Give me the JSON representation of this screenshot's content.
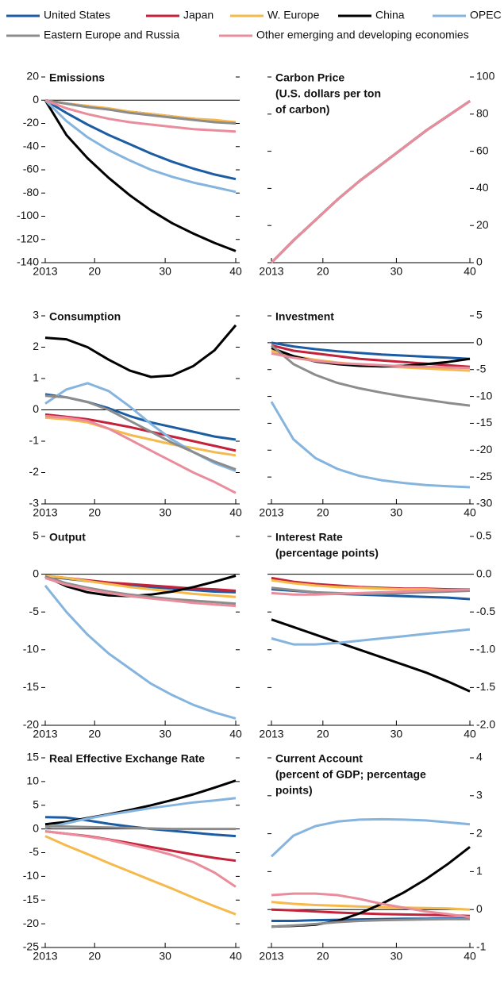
{
  "legend": [
    {
      "name": "United States",
      "color": "#1b5ca3"
    },
    {
      "name": "Japan",
      "color": "#c4213b"
    },
    {
      "name": "W. Europe",
      "color": "#f5b94c"
    },
    {
      "name": "China",
      "color": "#000000"
    },
    {
      "name": "OPEC",
      "color": "#85b4de"
    },
    {
      "name": "Eastern Europe and Russia",
      "color": "#8c8c8c"
    },
    {
      "name": "Other emerging and developing economies",
      "color": "#e98c9c"
    }
  ],
  "chart_data": [
    {
      "type": "line",
      "title": "Emissions",
      "x": [
        2013,
        2016,
        2019,
        2022,
        2025,
        2028,
        2031,
        2034,
        2037,
        2040
      ],
      "xlim": [
        2013,
        2040
      ],
      "xticks": [
        2013,
        {
          "value": 2020,
          "label": "20"
        },
        {
          "value": 2030,
          "label": "30"
        },
        {
          "value": 2040,
          "label": "40"
        }
      ],
      "ylim": [
        -140,
        20
      ],
      "yticks": [
        -140,
        -120,
        -100,
        -80,
        -60,
        -40,
        -20,
        0,
        20
      ],
      "series": [
        {
          "values": [
            0,
            -11,
            -21,
            -30,
            -38,
            -46,
            -53,
            -59,
            -64,
            -68
          ]
        },
        {
          "values": [
            0,
            -3,
            -5,
            -8,
            -10,
            -12,
            -14,
            -16,
            -18,
            -20
          ]
        },
        {
          "values": [
            0,
            -3,
            -5,
            -7,
            -10,
            -12,
            -14,
            -16,
            -17,
            -19
          ]
        },
        {
          "values": [
            0,
            -30,
            -50,
            -67,
            -82,
            -95,
            -106,
            -115,
            -123,
            -130
          ]
        },
        {
          "values": [
            0,
            -18,
            -32,
            -43,
            -52,
            -60,
            -66,
            -71,
            -75,
            -79
          ]
        },
        {
          "values": [
            0,
            -3,
            -6,
            -8,
            -11,
            -13,
            -15,
            -17,
            -19,
            -20
          ]
        },
        {
          "values": [
            0,
            -7,
            -12,
            -16,
            -19,
            -21,
            -23,
            -25,
            -26,
            -27
          ]
        }
      ]
    },
    {
      "type": "line",
      "title": "Carbon Price",
      "subtitle": [
        "(U.S. dollars per ton",
        "of carbon)"
      ],
      "x": [
        2013,
        2016,
        2019,
        2022,
        2025,
        2028,
        2031,
        2034,
        2037,
        2040
      ],
      "xlim": [
        2013,
        2040
      ],
      "xticks": [
        2013,
        {
          "value": 2020,
          "label": "20"
        },
        {
          "value": 2030,
          "label": "30"
        },
        {
          "value": 2040,
          "label": "40"
        }
      ],
      "ylim": [
        0,
        100
      ],
      "yticks": [
        0,
        20,
        40,
        60,
        80,
        100
      ],
      "series": [
        {
          "values": [
            0,
            12,
            23,
            34,
            44,
            53,
            62,
            71,
            79,
            87
          ]
        },
        {
          "values": [
            0,
            12,
            23,
            34,
            44,
            53,
            62,
            71,
            79,
            87
          ]
        },
        {
          "values": [
            0,
            12,
            23,
            34,
            44,
            53,
            62,
            71,
            79,
            87
          ]
        },
        {
          "values": [
            0,
            12,
            23,
            34,
            44,
            53,
            62,
            71,
            79,
            87
          ]
        },
        {
          "values": [
            0,
            12,
            23,
            34,
            44,
            53,
            62,
            71,
            79,
            87
          ]
        },
        {
          "values": [
            0,
            12,
            23,
            34,
            44,
            53,
            62,
            71,
            79,
            87
          ]
        },
        {
          "values": [
            0,
            12,
            23,
            34,
            44,
            53,
            62,
            71,
            79,
            87
          ]
        }
      ]
    },
    {
      "type": "line",
      "title": "Consumption",
      "x": [
        2013,
        2016,
        2019,
        2022,
        2025,
        2028,
        2031,
        2034,
        2037,
        2040
      ],
      "xlim": [
        2013,
        2040
      ],
      "xticks": [
        2013,
        {
          "value": 2020,
          "label": "20"
        },
        {
          "value": 2030,
          "label": "30"
        },
        {
          "value": 2040,
          "label": "40"
        }
      ],
      "ylim": [
        -3,
        3
      ],
      "yticks": [
        -3,
        -2,
        -1,
        0,
        1,
        2,
        3
      ],
      "series": [
        {
          "values": [
            0.5,
            0.4,
            0.25,
            0.05,
            -0.2,
            -0.4,
            -0.55,
            -0.7,
            -0.85,
            -0.95
          ]
        },
        {
          "values": [
            -0.15,
            -0.22,
            -0.3,
            -0.42,
            -0.55,
            -0.7,
            -0.85,
            -1.0,
            -1.15,
            -1.3
          ]
        },
        {
          "values": [
            -0.25,
            -0.3,
            -0.4,
            -0.6,
            -0.8,
            -0.95,
            -1.1,
            -1.22,
            -1.35,
            -1.45
          ]
        },
        {
          "values": [
            2.3,
            2.25,
            2.0,
            1.6,
            1.25,
            1.05,
            1.1,
            1.4,
            1.9,
            2.7
          ]
        },
        {
          "values": [
            0.2,
            0.65,
            0.85,
            0.6,
            0.1,
            -0.45,
            -0.95,
            -1.35,
            -1.7,
            -1.95
          ]
        },
        {
          "values": [
            0.45,
            0.4,
            0.25,
            0.0,
            -0.35,
            -0.7,
            -1.05,
            -1.35,
            -1.65,
            -1.9
          ]
        },
        {
          "values": [
            -0.2,
            -0.25,
            -0.35,
            -0.6,
            -0.95,
            -1.3,
            -1.65,
            -2.0,
            -2.3,
            -2.65
          ]
        }
      ]
    },
    {
      "type": "line",
      "title": "Investment",
      "x": [
        2013,
        2016,
        2019,
        2022,
        2025,
        2028,
        2031,
        2034,
        2037,
        2040
      ],
      "xlim": [
        2013,
        2040
      ],
      "xticks": [
        2013,
        {
          "value": 2020,
          "label": "20"
        },
        {
          "value": 2030,
          "label": "30"
        },
        {
          "value": 2040,
          "label": "40"
        }
      ],
      "ylim": [
        -30,
        5
      ],
      "yticks": [
        -30,
        -25,
        -20,
        -15,
        -10,
        -5,
        0,
        5
      ],
      "series": [
        {
          "values": [
            0,
            -0.7,
            -1.2,
            -1.6,
            -1.9,
            -2.2,
            -2.4,
            -2.6,
            -2.8,
            -3
          ]
        },
        {
          "values": [
            -0.5,
            -1.5,
            -2,
            -2.5,
            -3,
            -3.3,
            -3.6,
            -3.9,
            -4.2,
            -4.5
          ]
        },
        {
          "values": [
            -1.5,
            -2.5,
            -3.2,
            -3.7,
            -4.1,
            -4.4,
            -4.6,
            -4.8,
            -5,
            -5.2
          ]
        },
        {
          "values": [
            -1,
            -2.5,
            -3.5,
            -4,
            -4.3,
            -4.4,
            -4.3,
            -4,
            -3.6,
            -3
          ]
        },
        {
          "values": [
            -11,
            -18,
            -21.5,
            -23.5,
            -24.8,
            -25.6,
            -26.1,
            -26.5,
            -26.7,
            -26.9
          ]
        },
        {
          "values": [
            -0.5,
            -4,
            -6,
            -7.5,
            -8.5,
            -9.3,
            -10,
            -10.6,
            -11.2,
            -11.7
          ]
        },
        {
          "values": [
            -2,
            -2.8,
            -3.4,
            -3.8,
            -4,
            -4.2,
            -4.4,
            -4.5,
            -4.6,
            -4.7
          ]
        }
      ]
    },
    {
      "type": "line",
      "title": "Output",
      "x": [
        2013,
        2016,
        2019,
        2022,
        2025,
        2028,
        2031,
        2034,
        2037,
        2040
      ],
      "xlim": [
        2013,
        2040
      ],
      "xticks": [
        2013,
        {
          "value": 2020,
          "label": "20"
        },
        {
          "value": 2030,
          "label": "30"
        },
        {
          "value": 2040,
          "label": "40"
        }
      ],
      "ylim": [
        -20,
        5
      ],
      "yticks": [
        -20,
        -15,
        -10,
        -5,
        0,
        5
      ],
      "series": [
        {
          "values": [
            -0.3,
            -0.6,
            -0.9,
            -1.2,
            -1.5,
            -1.7,
            -1.9,
            -2.1,
            -2.3,
            -2.4
          ]
        },
        {
          "values": [
            -0.2,
            -0.5,
            -0.8,
            -1.1,
            -1.3,
            -1.5,
            -1.7,
            -1.9,
            -2.0,
            -2.2
          ]
        },
        {
          "values": [
            -0.2,
            -0.5,
            -0.9,
            -1.3,
            -1.7,
            -2.0,
            -2.3,
            -2.6,
            -2.8,
            -3
          ]
        },
        {
          "values": [
            -0.3,
            -1.6,
            -2.4,
            -2.8,
            -2.9,
            -2.7,
            -2.3,
            -1.7,
            -1.0,
            -0.2
          ]
        },
        {
          "values": [
            -1.5,
            -5,
            -8,
            -10.5,
            -12.5,
            -14.5,
            -16,
            -17.3,
            -18.3,
            -19.1
          ]
        },
        {
          "values": [
            -0.3,
            -1.2,
            -1.8,
            -2.3,
            -2.7,
            -3.0,
            -3.3,
            -3.5,
            -3.7,
            -3.9
          ]
        },
        {
          "values": [
            -0.5,
            -1.4,
            -2,
            -2.5,
            -2.9,
            -3.2,
            -3.5,
            -3.8,
            -4.0,
            -4.2
          ]
        }
      ]
    },
    {
      "type": "line",
      "title": "Interest Rate",
      "subtitle": [
        "(percentage points)"
      ],
      "x": [
        2013,
        2016,
        2019,
        2022,
        2025,
        2028,
        2031,
        2034,
        2037,
        2040
      ],
      "xlim": [
        2013,
        2040
      ],
      "xticks": [
        2013,
        {
          "value": 2020,
          "label": "20"
        },
        {
          "value": 2030,
          "label": "30"
        },
        {
          "value": 2040,
          "label": "40"
        }
      ],
      "ylim": [
        -2,
        0.5
      ],
      "yticks": [
        {
          "value": -2,
          "label": "-2.0"
        },
        -1.5,
        {
          "value": -1,
          "label": "-1.0"
        },
        -0.5,
        {
          "value": 0,
          "label": "0.0"
        },
        0.5
      ],
      "series": [
        {
          "values": [
            -0.2,
            -0.22,
            -0.24,
            -0.26,
            -0.27,
            -0.28,
            -0.29,
            -0.3,
            -0.31,
            -0.33
          ]
        },
        {
          "values": [
            -0.05,
            -0.1,
            -0.13,
            -0.15,
            -0.17,
            -0.18,
            -0.19,
            -0.19,
            -0.2,
            -0.2
          ]
        },
        {
          "values": [
            -0.08,
            -0.12,
            -0.15,
            -0.17,
            -0.18,
            -0.19,
            -0.2,
            -0.2,
            -0.21,
            -0.21
          ]
        },
        {
          "values": [
            -0.6,
            -0.7,
            -0.8,
            -0.9,
            -1.0,
            -1.1,
            -1.2,
            -1.3,
            -1.42,
            -1.55
          ]
        },
        {
          "values": [
            -0.85,
            -0.93,
            -0.93,
            -0.91,
            -0.88,
            -0.85,
            -0.82,
            -0.79,
            -0.76,
            -0.73
          ]
        },
        {
          "values": [
            -0.18,
            -0.21,
            -0.24,
            -0.25,
            -0.26,
            -0.26,
            -0.25,
            -0.24,
            -0.23,
            -0.22
          ]
        },
        {
          "values": [
            -0.25,
            -0.27,
            -0.27,
            -0.26,
            -0.25,
            -0.24,
            -0.23,
            -0.22,
            -0.21,
            -0.2
          ]
        }
      ]
    },
    {
      "type": "line",
      "title": "Real Effective Exchange Rate",
      "x": [
        2013,
        2016,
        2019,
        2022,
        2025,
        2028,
        2031,
        2034,
        2037,
        2040
      ],
      "xlim": [
        2013,
        2040
      ],
      "xticks": [
        2013,
        {
          "value": 2020,
          "label": "20"
        },
        {
          "value": 2030,
          "label": "30"
        },
        {
          "value": 2040,
          "label": "40"
        }
      ],
      "ylim": [
        -25,
        15
      ],
      "yticks": [
        -25,
        -20,
        -15,
        -10,
        -5,
        0,
        5,
        10,
        15
      ],
      "series": [
        {
          "values": [
            2.5,
            2.4,
            1.8,
            1.1,
            0.5,
            0,
            -0.4,
            -0.8,
            -1.2,
            -1.5
          ]
        },
        {
          "values": [
            -0.5,
            -1,
            -1.5,
            -2.2,
            -3,
            -3.8,
            -4.6,
            -5.4,
            -6.1,
            -6.7
          ]
        },
        {
          "values": [
            -1.5,
            -3.5,
            -5.3,
            -7.2,
            -9,
            -10.8,
            -12.6,
            -14.5,
            -16.3,
            -18
          ]
        },
        {
          "values": [
            1,
            1.5,
            2.3,
            3.1,
            4,
            5,
            6.1,
            7.3,
            8.7,
            10.2
          ]
        },
        {
          "values": [
            0.2,
            1.2,
            2.2,
            3.0,
            3.7,
            4.4,
            5.0,
            5.6,
            6.0,
            6.5
          ]
        },
        {
          "values": [
            0.5,
            0.5,
            0.4,
            0.3,
            0.2,
            0.1,
            0.0,
            0,
            0,
            0
          ]
        },
        {
          "values": [
            -0.5,
            -1,
            -1.6,
            -2.3,
            -3.3,
            -4.3,
            -5.5,
            -7,
            -9.2,
            -12.2
          ]
        }
      ]
    },
    {
      "type": "line",
      "title": "Current Account",
      "subtitle": [
        "(percent of GDP; percentage",
        "points)"
      ],
      "x": [
        2013,
        2016,
        2019,
        2022,
        2025,
        2028,
        2031,
        2034,
        2037,
        2040
      ],
      "xlim": [
        2013,
        2040
      ],
      "xticks": [
        2013,
        {
          "value": 2020,
          "label": "20"
        },
        {
          "value": 2030,
          "label": "30"
        },
        {
          "value": 2040,
          "label": "40"
        }
      ],
      "ylim": [
        -1,
        4
      ],
      "yticks": [
        -1,
        0,
        1,
        2,
        3,
        4
      ],
      "series": [
        {
          "values": [
            -0.3,
            -0.3,
            -0.28,
            -0.27,
            -0.26,
            -0.25,
            -0.24,
            -0.24,
            -0.23,
            -0.23
          ]
        },
        {
          "values": [
            0.0,
            -0.02,
            -0.05,
            -0.08,
            -0.1,
            -0.12,
            -0.13,
            -0.14,
            -0.15,
            -0.17
          ]
        },
        {
          "values": [
            0.2,
            0.15,
            0.12,
            0.1,
            0.08,
            0.06,
            0.05,
            0.04,
            0.03,
            0.0
          ]
        },
        {
          "values": [
            -0.45,
            -0.43,
            -0.4,
            -0.3,
            -0.1,
            0.15,
            0.45,
            0.8,
            1.2,
            1.65
          ]
        },
        {
          "values": [
            1.4,
            1.95,
            2.2,
            2.32,
            2.37,
            2.38,
            2.37,
            2.35,
            2.3,
            2.25
          ]
        },
        {
          "values": [
            -0.45,
            -0.42,
            -0.38,
            -0.33,
            -0.3,
            -0.28,
            -0.27,
            -0.26,
            -0.25,
            -0.25
          ]
        },
        {
          "values": [
            0.38,
            0.42,
            0.42,
            0.38,
            0.28,
            0.15,
            0.05,
            -0.05,
            -0.12,
            -0.2
          ]
        }
      ]
    }
  ]
}
